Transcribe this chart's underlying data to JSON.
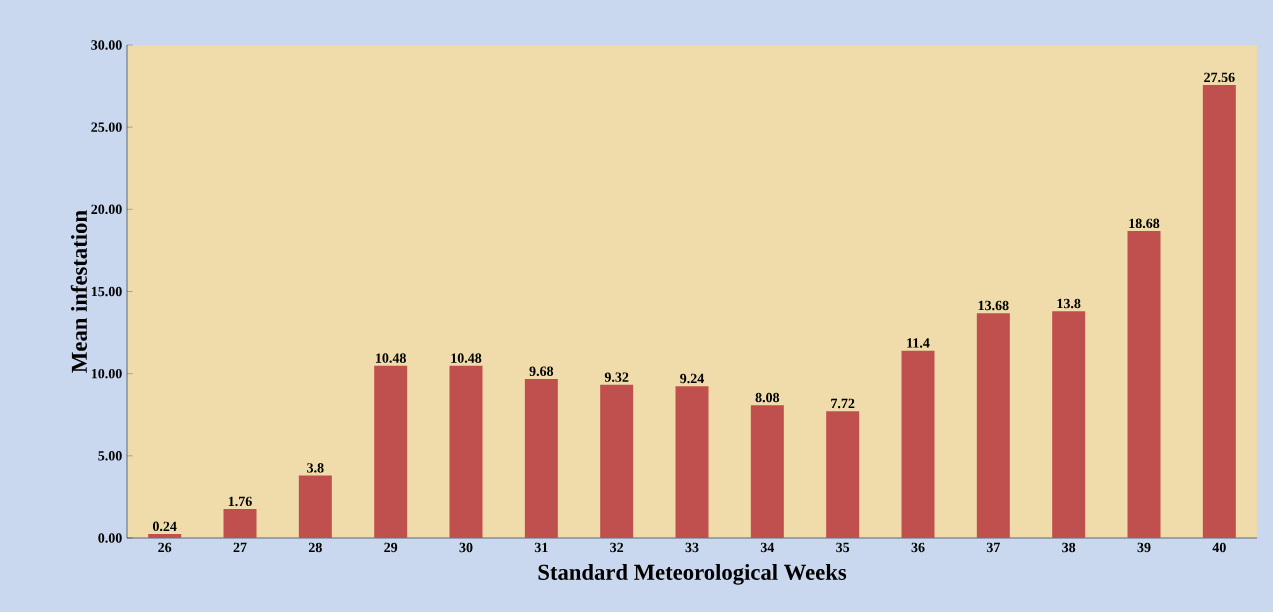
{
  "chart_data": {
    "type": "bar",
    "xlabel": "Standard  Meteorological Weeks",
    "ylabel": "Mean infestation",
    "categories": [
      "26",
      "27",
      "28",
      "29",
      "30",
      "31",
      "32",
      "33",
      "34",
      "35",
      "36",
      "37",
      "38",
      "39",
      "40"
    ],
    "values": [
      0.24,
      1.76,
      3.8,
      10.48,
      10.48,
      9.68,
      9.32,
      9.24,
      8.08,
      7.72,
      11.4,
      13.68,
      13.8,
      18.68,
      27.56
    ],
    "value_labels": [
      "0.24",
      "1.76",
      "3.8",
      "10.48",
      "10.48",
      "9.68",
      "9.32",
      "9.24",
      "8.08",
      "7.72",
      "11.4",
      "13.68",
      "13.8",
      "18.68",
      "27.56"
    ],
    "color": "#c0504d",
    "ylim": [
      0,
      30
    ],
    "yticks": [
      {
        "value": 0,
        "label": "0.00"
      },
      {
        "value": 5,
        "label": "5.00"
      },
      {
        "value": 10,
        "label": "10.00"
      },
      {
        "value": 15,
        "label": "15.00"
      },
      {
        "value": 20,
        "label": "20.00"
      },
      {
        "value": 25,
        "label": "25.00"
      },
      {
        "value": 30,
        "label": "30.00"
      }
    ]
  }
}
